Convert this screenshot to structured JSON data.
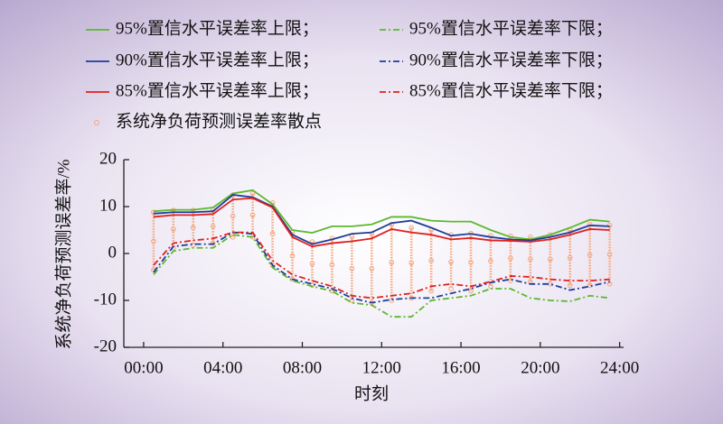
{
  "chart_data": {
    "type": "line",
    "x_label": "时刻",
    "y_label": "系统净负荷预测误差率/%",
    "x": [
      0.5,
      1.5,
      2.5,
      3.5,
      4.5,
      5.5,
      6.5,
      7.5,
      8.5,
      9.5,
      10.5,
      11.5,
      12.5,
      13.5,
      14.5,
      15.5,
      16.5,
      17.5,
      18.5,
      19.5,
      20.5,
      21.5,
      22.5,
      23.5
    ],
    "xlim": [
      -1,
      24.2
    ],
    "xticks": [
      {
        "value": 0,
        "label": "00:00"
      },
      {
        "value": 4,
        "label": "04:00"
      },
      {
        "value": 8,
        "label": "08:00"
      },
      {
        "value": 12,
        "label": "12:00"
      },
      {
        "value": 16,
        "label": "16:00"
      },
      {
        "value": 20,
        "label": "20:00"
      },
      {
        "value": 24,
        "label": "24:00"
      }
    ],
    "ylim": [
      -20,
      20
    ],
    "yticks": [
      -20,
      -10,
      0,
      10,
      20
    ],
    "series": [
      {
        "name": "95%置信水平误差率上限；",
        "color": "#5cb82e",
        "linestyle": "solid",
        "values": [
          9,
          9.3,
          9.3,
          9.8,
          12.8,
          13.5,
          10.5,
          5,
          4.4,
          5.8,
          5.8,
          6.2,
          7.8,
          7.8,
          7,
          6.8,
          6.8,
          5,
          3.5,
          3,
          4,
          5.5,
          7.2,
          6.8
        ]
      },
      {
        "name": "95%置信水平误差率下限；",
        "color": "#5cb82e",
        "linestyle": "dashdot",
        "values": [
          -4.5,
          0.5,
          1.2,
          1.2,
          4,
          3.5,
          -3,
          -5.8,
          -7,
          -8,
          -10.5,
          -11,
          -13.5,
          -13.5,
          -10,
          -9.5,
          -9,
          -7.5,
          -7.5,
          -9.5,
          -10,
          -10.2,
          -9,
          -9.5
        ]
      },
      {
        "name": "90%置信水平误差率上限；",
        "color": "#1f3d99",
        "linestyle": "solid",
        "values": [
          8.5,
          8.8,
          8.8,
          9,
          12.5,
          12,
          10,
          4,
          2,
          3,
          4.2,
          4.5,
          6.5,
          7,
          5.5,
          3.8,
          4.2,
          3.5,
          3,
          2.8,
          3.5,
          4.5,
          6,
          5.8
        ]
      },
      {
        "name": "90%置信水平误差率下限；",
        "color": "#1f3d99",
        "linestyle": "dashdot",
        "values": [
          -4,
          1.5,
          2,
          2,
          4.5,
          4.2,
          -2.5,
          -5.5,
          -6.5,
          -7.5,
          -9.5,
          -10.5,
          -9.8,
          -9.5,
          -9.5,
          -8.5,
          -7.5,
          -6.2,
          -5.5,
          -6.5,
          -6.5,
          -7.8,
          -7,
          -6
        ]
      },
      {
        "name": "85%置信水平误差率上限；",
        "color": "#e02020",
        "linestyle": "solid",
        "values": [
          7.8,
          8.2,
          8.2,
          8.4,
          11.5,
          11.8,
          9.8,
          3.5,
          1.5,
          2.2,
          2.6,
          3.2,
          5.2,
          4.5,
          4,
          3,
          3.3,
          2.8,
          2.7,
          2.5,
          3,
          4,
          5.2,
          5
        ]
      },
      {
        "name": "85%置信水平误差率下限；",
        "color": "#e02020",
        "linestyle": "dashdot",
        "values": [
          -2.5,
          2.2,
          2.8,
          3.2,
          4.5,
          4.5,
          -1.5,
          -4.5,
          -5.8,
          -7,
          -9,
          -9.5,
          -9,
          -8.5,
          -7,
          -6.5,
          -7,
          -6,
          -4.8,
          -5,
          -5.5,
          -5.8,
          -5.8,
          -5.5
        ]
      },
      {
        "name": "系统净负荷预测误差率散点",
        "color": "#f4a57a",
        "type": "scatter",
        "x": [
          0.5,
          0.5,
          0.5,
          1.5,
          1.5,
          1.5,
          2.5,
          2.5,
          2.5,
          3.5,
          3.5,
          3.5,
          4.5,
          4.5,
          4.5,
          5.5,
          5.5,
          5.5,
          6.5,
          6.5,
          6.5,
          7.5,
          7.5,
          7.5,
          8.5,
          8.5,
          8.5,
          9.5,
          9.5,
          9.5,
          10.5,
          10.5,
          10.5,
          11.5,
          11.5,
          11.5,
          12.5,
          12.5,
          12.5,
          13.5,
          13.5,
          13.5,
          14.5,
          14.5,
          14.5,
          15.5,
          15.5,
          15.5,
          16.5,
          16.5,
          16.5,
          17.5,
          17.5,
          17.5,
          18.5,
          18.5,
          18.5,
          19.5,
          19.5,
          19.5,
          20.5,
          20.5,
          20.5,
          21.5,
          21.5,
          21.5,
          22.5,
          22.5,
          22.5,
          23.5,
          23.5,
          23.5
        ],
        "values": [
          8.8,
          2.6,
          -3.5,
          9.2,
          5.2,
          1.2,
          9.2,
          5.5,
          1.8,
          9.4,
          5.8,
          2.2,
          12.5,
          8,
          3.5,
          12.8,
          8.2,
          3.5,
          10.8,
          4.2,
          -2.5,
          4.5,
          -0.5,
          -5.5,
          2.5,
          -2.2,
          -6.8,
          3.2,
          -2.4,
          -8,
          3.6,
          -3.2,
          -10,
          4.2,
          -3.2,
          -10.5,
          6.2,
          -1.9,
          -10,
          5.5,
          -2,
          -9.5,
          5,
          -1.5,
          -8,
          4,
          -1.8,
          -7.5,
          4.3,
          -1.9,
          -8,
          3.8,
          -1.6,
          -7,
          3.7,
          -1,
          -5.8,
          3.5,
          -1.2,
          -6,
          4,
          -1.2,
          -6.5,
          5,
          -0.9,
          -6.8,
          6.2,
          -0.3,
          -6.8,
          6,
          -0.2,
          -6.5
        ]
      }
    ]
  }
}
